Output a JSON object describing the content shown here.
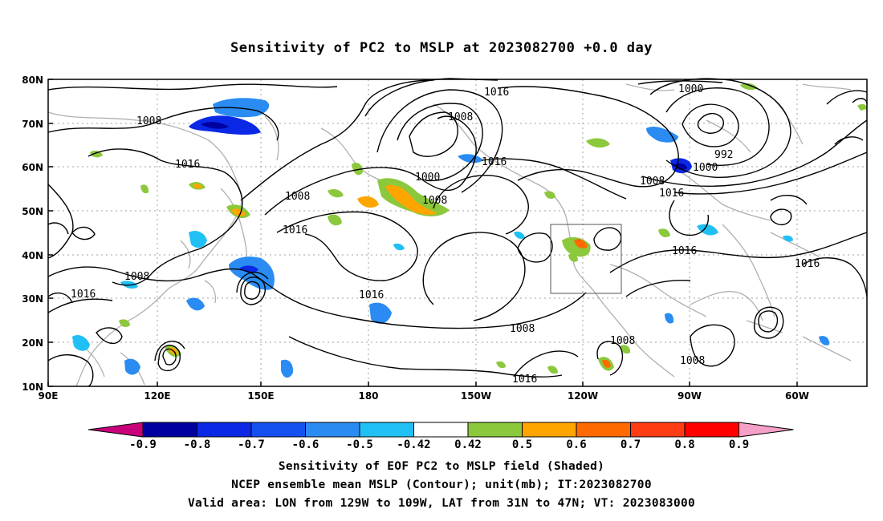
{
  "title": "Sensitivity of PC2 to MSLP at 2023082700 +0.0 day",
  "lat_ticks": [
    "80N",
    "70N",
    "60N",
    "50N",
    "40N",
    "30N",
    "20N",
    "10N"
  ],
  "lon_ticks": [
    "90E",
    "120E",
    "150E",
    "180",
    "150W",
    "120W",
    "90W",
    "60W"
  ],
  "contour_labels": [
    {
      "text": "1008"
    },
    {
      "text": "1016"
    },
    {
      "text": "1008"
    },
    {
      "text": "1016"
    },
    {
      "text": "1016"
    },
    {
      "text": "1008"
    },
    {
      "text": "1016"
    },
    {
      "text": "1000"
    },
    {
      "text": "1008"
    },
    {
      "text": "1016"
    },
    {
      "text": "1016"
    },
    {
      "text": "1008"
    },
    {
      "text": "1008"
    },
    {
      "text": "1000"
    },
    {
      "text": "992"
    },
    {
      "text": "1000"
    },
    {
      "text": "1008"
    },
    {
      "text": "1016"
    },
    {
      "text": "1016"
    },
    {
      "text": "1016"
    },
    {
      "text": "1008"
    },
    {
      "text": "1008"
    },
    {
      "text": "1016"
    }
  ],
  "colorbar": {
    "labels": [
      "-0.9",
      "-0.8",
      "-0.7",
      "-0.6",
      "-0.5",
      "-0.42",
      "0.42",
      "0.5",
      "0.6",
      "0.7",
      "0.8",
      "0.9"
    ],
    "low_extend_color": "#c8007a",
    "high_extend_color": "#f5a0c8",
    "colors": [
      "#0000a0",
      "#0a28e6",
      "#1450f0",
      "#2a8cf2",
      "#20c0f5",
      "#ffffff",
      "#8cc83c",
      "#ffa500",
      "#ff6a00",
      "#ff3c14",
      "#ff0000"
    ]
  },
  "captions": [
    "Sensitivity of EOF PC2 to MSLP field (Shaded)",
    "NCEP ensemble mean MSLP (Contour); unit(mb); IT:2023082700",
    "Valid area: LON from 129W to 109W, LAT from 31N to 47N; VT: 2023083000"
  ]
}
